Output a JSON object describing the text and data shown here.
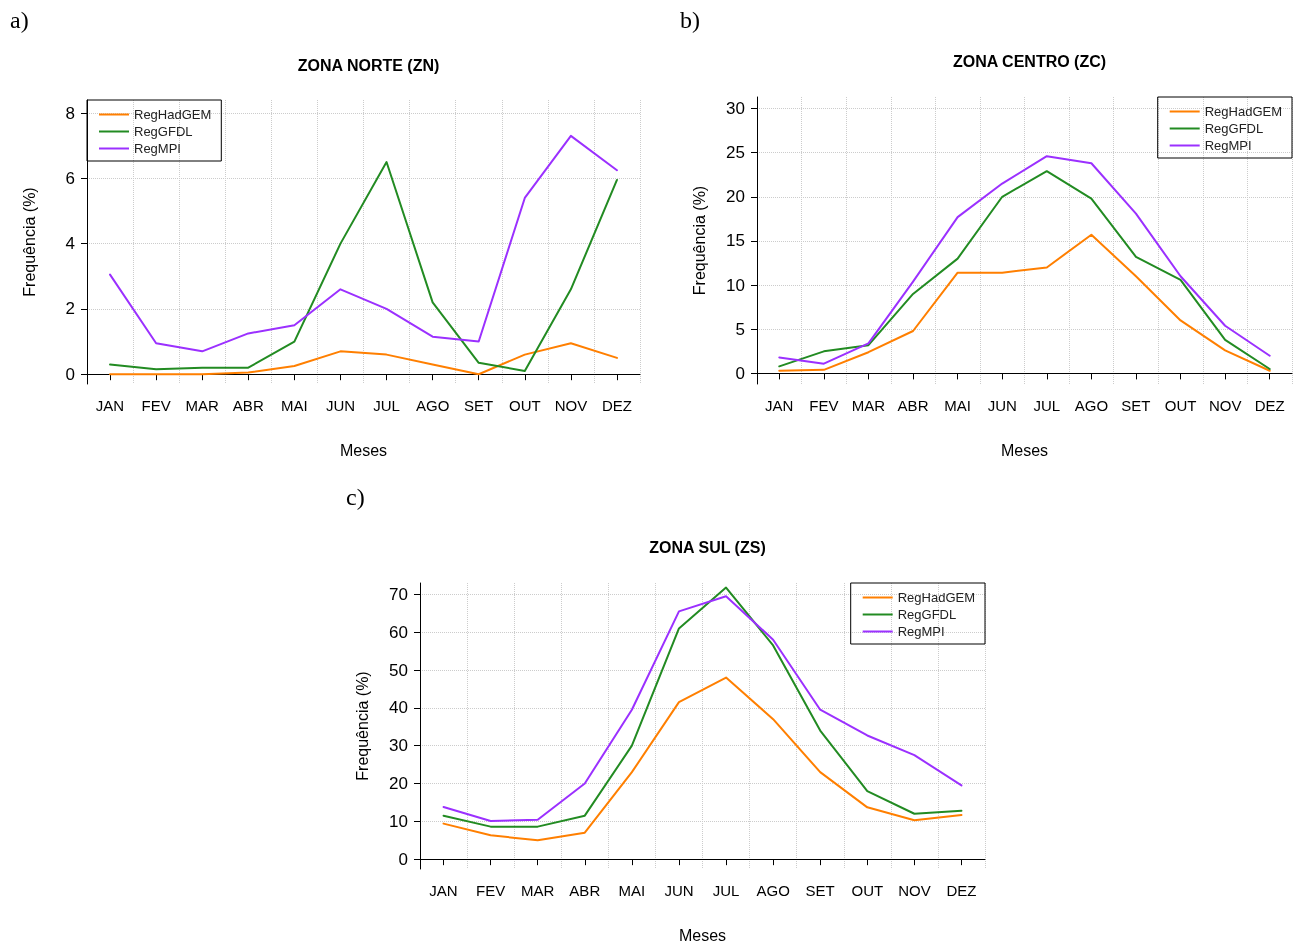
{
  "chart_data": [
    {
      "type": "line",
      "title": "ZONA NORTE (ZN)",
      "xlabel": "Meses",
      "ylabel": "Frequência (%)",
      "annotations": [
        "a)"
      ],
      "categories": [
        "JAN",
        "FEV",
        "MAR",
        "ABR",
        "MAI",
        "JUN",
        "JUL",
        "AGO",
        "SET",
        "OUT",
        "NOV",
        "DEZ"
      ],
      "series": [
        {
          "name": "RegHadGEM",
          "color": "#ff7f00",
          "values": [
            0,
            0,
            0,
            0.05,
            0.25,
            0.7,
            0.6,
            0.3,
            0,
            0.6,
            0.95,
            0.5
          ]
        },
        {
          "name": "RegGFDL",
          "color": "#228b22",
          "values": [
            0.3,
            0.15,
            0.2,
            0.2,
            1.0,
            4.0,
            6.5,
            2.2,
            0.35,
            0.1,
            2.6,
            5.95
          ]
        },
        {
          "name": "RegMPI",
          "color": "#9b30ff",
          "values": [
            3.05,
            0.95,
            0.7,
            1.25,
            1.5,
            2.6,
            2.0,
            1.15,
            1.0,
            5.4,
            7.3,
            6.25
          ]
        }
      ],
      "ylim": [
        -0.3,
        8.4
      ],
      "yticks": [
        0,
        2,
        4,
        6,
        8
      ],
      "grid": true,
      "legend": "top left",
      "marker": "none"
    },
    {
      "type": "line",
      "title": "ZONA CENTRO (ZC)",
      "xlabel": "Meses",
      "ylabel": "Frequência (%)",
      "annotations": [
        "b)"
      ],
      "categories": [
        "JAN",
        "FEV",
        "MAR",
        "ABR",
        "MAI",
        "JUN",
        "JUL",
        "AGO",
        "SET",
        "OUT",
        "NOV",
        "DEZ"
      ],
      "series": [
        {
          "name": "RegHadGEM",
          "color": "#ff7f00",
          "values": [
            0.3,
            0.4,
            2.4,
            4.8,
            11.4,
            11.4,
            12,
            15.7,
            11,
            6,
            2.6,
            0.3
          ]
        },
        {
          "name": "RegGFDL",
          "color": "#228b22",
          "values": [
            0.8,
            2.5,
            3.2,
            9,
            13,
            20,
            22.9,
            19.8,
            13.2,
            10.6,
            3.8,
            0.5
          ]
        },
        {
          "name": "RegMPI",
          "color": "#9b30ff",
          "values": [
            1.8,
            1.1,
            3.4,
            10.4,
            17.7,
            21.5,
            24.6,
            23.8,
            18.1,
            11,
            5.4,
            2
          ]
        }
      ],
      "ylim": [
        -1.2,
        31.3
      ],
      "yticks": [
        0,
        5,
        10,
        15,
        20,
        25,
        30
      ],
      "grid": true,
      "legend": "top right",
      "marker": "none"
    },
    {
      "type": "line",
      "title": "ZONA SUL (ZS)",
      "xlabel": "Meses",
      "ylabel": "Frequência (%)",
      "annotations": [
        "c)"
      ],
      "categories": [
        "JAN",
        "FEV",
        "MAR",
        "ABR",
        "MAI",
        "JUN",
        "JUL",
        "AGO",
        "SET",
        "OUT",
        "NOV",
        "DEZ"
      ],
      "series": [
        {
          "name": "RegHadGEM",
          "color": "#ff7f00",
          "values": [
            9.4,
            6.3,
            5,
            7,
            23,
            41.5,
            48,
            37,
            23,
            13.7,
            10.3,
            11.7
          ]
        },
        {
          "name": "RegGFDL",
          "color": "#228b22",
          "values": [
            11.5,
            8.6,
            8.6,
            11.5,
            30,
            61,
            71.8,
            56.5,
            34,
            18,
            12,
            12.8
          ]
        },
        {
          "name": "RegMPI",
          "color": "#9b30ff",
          "values": [
            13.8,
            10.1,
            10.4,
            20,
            39.5,
            65.5,
            69.5,
            58,
            39.5,
            32.7,
            27.5,
            19.5
          ]
        }
      ],
      "ylim": [
        -2.6,
        73
      ],
      "yticks": [
        0,
        10,
        20,
        30,
        40,
        50,
        60,
        70
      ],
      "grid": true,
      "legend": "top right",
      "marker": "none"
    }
  ]
}
